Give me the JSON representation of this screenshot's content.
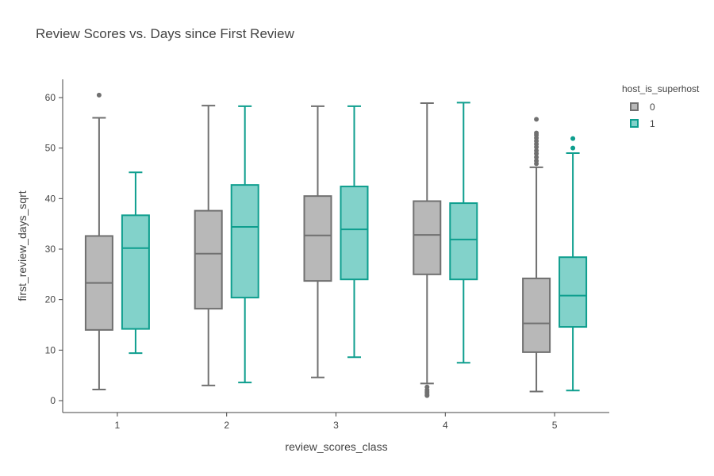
{
  "chart_data": {
    "type": "box",
    "title": "Review Scores vs. Days since First Review",
    "xlabel": "review_scores_class",
    "ylabel": "first_review_days_sqrt",
    "categories": [
      "1",
      "2",
      "3",
      "4",
      "5"
    ],
    "ylim": [
      -2,
      64
    ],
    "yticks": [
      0,
      10,
      20,
      30,
      40,
      50,
      60
    ],
    "grid": false,
    "legend": {
      "title": "host_is_superhost",
      "placement": "top-right"
    },
    "series": [
      {
        "name": "0",
        "line_color": "#707070",
        "fill_color": "#b8b8b8",
        "boxes": [
          {
            "category": "1",
            "min": 2.2,
            "q1": 14.0,
            "median": 23.3,
            "q3": 32.6,
            "max": 56.0,
            "outliers": [
              60.5
            ]
          },
          {
            "category": "2",
            "min": 3.0,
            "q1": 18.2,
            "median": 29.1,
            "q3": 37.6,
            "max": 58.4,
            "outliers": []
          },
          {
            "category": "3",
            "min": 4.6,
            "q1": 23.7,
            "median": 32.7,
            "q3": 40.5,
            "max": 58.3,
            "outliers": []
          },
          {
            "category": "4",
            "min": 3.4,
            "q1": 25.0,
            "median": 32.8,
            "q3": 39.5,
            "max": 58.9,
            "outliers": [
              2.7,
              2.1,
              1.7,
              1.3,
              1.0
            ]
          },
          {
            "category": "5",
            "min": 1.8,
            "q1": 9.6,
            "median": 15.3,
            "q3": 24.2,
            "max": 46.2,
            "outliers": [
              46.9,
              47.5,
              48.2,
              48.9,
              49.5,
              50.2,
              50.8,
              51.4,
              52.0,
              52.6,
              53.0,
              55.7
            ]
          }
        ]
      },
      {
        "name": "1",
        "line_color": "#0e9e8e",
        "fill_color": "#82d2ca",
        "boxes": [
          {
            "category": "1",
            "min": 9.4,
            "q1": 14.2,
            "median": 30.2,
            "q3": 36.7,
            "max": 45.2,
            "outliers": []
          },
          {
            "category": "2",
            "min": 3.6,
            "q1": 20.4,
            "median": 34.4,
            "q3": 42.7,
            "max": 58.3,
            "outliers": []
          },
          {
            "category": "3",
            "min": 8.6,
            "q1": 24.0,
            "median": 33.9,
            "q3": 42.4,
            "max": 58.3,
            "outliers": []
          },
          {
            "category": "4",
            "min": 7.5,
            "q1": 24.0,
            "median": 31.9,
            "q3": 39.1,
            "max": 59.0,
            "outliers": []
          },
          {
            "category": "5",
            "min": 2.0,
            "q1": 14.6,
            "median": 20.8,
            "q3": 28.4,
            "max": 49.0,
            "outliers": [
              50.0,
              51.9
            ]
          }
        ]
      }
    ]
  }
}
